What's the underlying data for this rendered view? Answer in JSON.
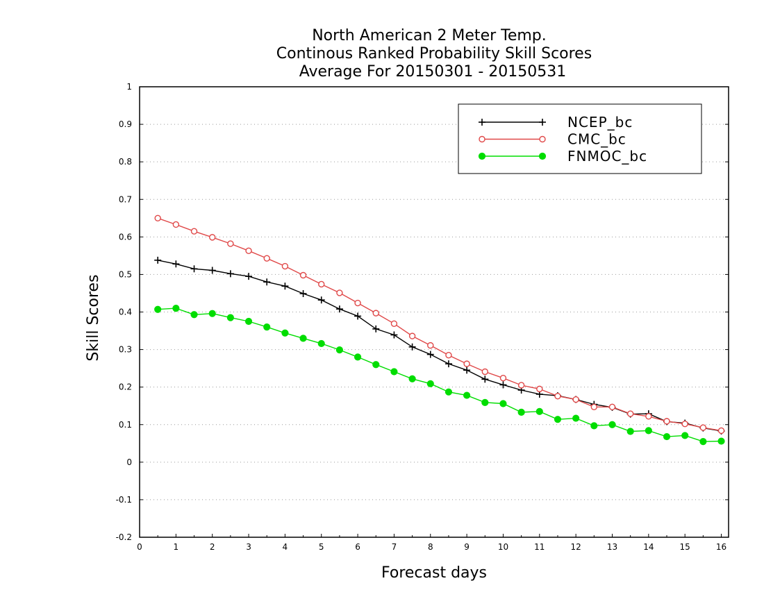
{
  "chart_data": {
    "type": "line",
    "title_lines": [
      "North American 2 Meter Temp.",
      "Continous Ranked Probability Skill Scores",
      "Average For 20150301 - 20150531"
    ],
    "xlabel": "Forecast days",
    "ylabel": "Skill Scores",
    "xlim": [
      0,
      16.2
    ],
    "ylim": [
      -0.2,
      1
    ],
    "xticks": [
      0,
      1,
      2,
      3,
      4,
      5,
      6,
      7,
      8,
      9,
      10,
      11,
      12,
      13,
      14,
      15,
      16
    ],
    "yticks": [
      -0.2,
      -0.1,
      0,
      0.1,
      0.2,
      0.3,
      0.4,
      0.5,
      0.6,
      0.7,
      0.8,
      0.9,
      1
    ],
    "ytick_labels": [
      "-0.2",
      "-0.1",
      "0",
      "0.1",
      "0.2",
      "0.3",
      "0.4",
      "0.5",
      "0.6",
      "0.7",
      "0.8",
      "0.9",
      "1"
    ],
    "grid": "horizontal dotted",
    "legend_position": "top-right",
    "x": [
      0.5,
      1,
      1.5,
      2,
      2.5,
      3,
      3.5,
      4,
      4.5,
      5,
      5.5,
      6,
      6.5,
      7,
      7.5,
      8,
      8.5,
      9,
      9.5,
      10,
      10.5,
      11,
      11.5,
      12,
      12.5,
      13,
      13.5,
      14,
      14.5,
      15,
      15.5,
      16
    ],
    "series": [
      {
        "name": "NCEP_bc",
        "color": "#000000",
        "marker": "plus",
        "values": [
          0.538,
          0.528,
          0.515,
          0.511,
          0.502,
          0.495,
          0.48,
          0.469,
          0.449,
          0.432,
          0.408,
          0.389,
          0.355,
          0.339,
          0.307,
          0.287,
          0.262,
          0.245,
          0.221,
          0.206,
          0.192,
          0.181,
          0.177,
          0.167,
          0.154,
          0.146,
          0.128,
          0.129,
          0.108,
          0.104,
          0.091,
          0.083
        ]
      },
      {
        "name": "CMC_bc",
        "color": "#e04848",
        "marker": "open-circle",
        "values": [
          0.65,
          0.633,
          0.615,
          0.599,
          0.582,
          0.563,
          0.543,
          0.522,
          0.498,
          0.474,
          0.451,
          0.424,
          0.397,
          0.369,
          0.336,
          0.311,
          0.285,
          0.262,
          0.241,
          0.224,
          0.205,
          0.195,
          0.176,
          0.167,
          0.147,
          0.147,
          0.129,
          0.122,
          0.109,
          0.102,
          0.092,
          0.084
        ]
      },
      {
        "name": "FNMOC_bc",
        "color": "#00dd00",
        "marker": "filled-circle",
        "values": [
          0.407,
          0.41,
          0.393,
          0.396,
          0.385,
          0.375,
          0.36,
          0.344,
          0.33,
          0.316,
          0.299,
          0.28,
          0.26,
          0.241,
          0.222,
          0.209,
          0.187,
          0.178,
          0.159,
          0.156,
          0.133,
          0.135,
          0.114,
          0.117,
          0.097,
          0.1,
          0.082,
          0.084,
          0.068,
          0.071,
          0.055,
          0.056
        ]
      }
    ]
  }
}
